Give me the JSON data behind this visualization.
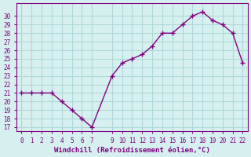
{
  "x": [
    0,
    1,
    2,
    3,
    4,
    5,
    6,
    7,
    9,
    10,
    11,
    12,
    13,
    14,
    15,
    16,
    17,
    18,
    19,
    20,
    21,
    22
  ],
  "y": [
    21,
    21,
    21,
    21,
    20,
    19,
    18,
    17,
    23,
    24.5,
    25,
    25.5,
    26.5,
    28,
    28,
    29,
    30,
    30.5,
    29.5,
    29,
    28,
    24.5
  ],
  "line_color": "#800080",
  "marker": "+",
  "bg_color": "#d6f0f0",
  "grid_color": "#b0d8d8",
  "xlabel": "Windchill (Refroidissement éolien,°C)",
  "xlabel_color": "#800080",
  "tick_color": "#800080",
  "ylim": [
    17,
    31
  ],
  "xlim": [
    -0.5,
    22.5
  ],
  "yticks": [
    17,
    18,
    19,
    20,
    21,
    22,
    23,
    24,
    25,
    26,
    27,
    28,
    29,
    30
  ],
  "xticks": [
    0,
    1,
    2,
    3,
    4,
    5,
    6,
    7,
    9,
    10,
    11,
    12,
    13,
    14,
    15,
    16,
    17,
    18,
    19,
    20,
    21,
    22
  ]
}
